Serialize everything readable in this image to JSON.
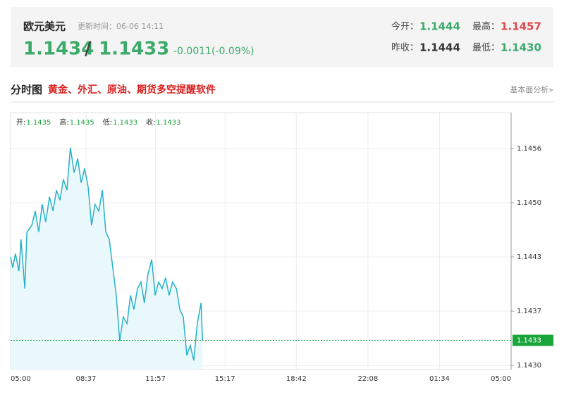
{
  "header": {
    "name": "欧元美元",
    "update_label": "更新时间：06-06 14:11",
    "bid": "1.1434",
    "separator": "/",
    "ask": "1.1433",
    "arrow": "↓",
    "change": "-0.0011(-0.09%)",
    "stats": [
      {
        "label": "今开：",
        "value": "1.1444"
      },
      {
        "label": "最高：",
        "value": "1.1457"
      },
      {
        "label": "昨收：",
        "value": "1.1444"
      },
      {
        "label": "最低：",
        "value": "1.1430"
      }
    ]
  },
  "section": {
    "title": "分时图",
    "promo": "黄金、外汇、原油、期货多空提醒软件",
    "link": "基本面分析»"
  },
  "chart_data": {
    "type": "line",
    "ohlc": [
      {
        "label": "开:",
        "value": "1.1435"
      },
      {
        "label": "高:",
        "value": "1.1435"
      },
      {
        "label": "低:",
        "value": "1.1433"
      },
      {
        "label": "收:",
        "value": "1.1433"
      }
    ],
    "x": [
      0,
      6,
      14,
      24,
      30,
      41,
      47,
      61,
      71,
      81,
      91,
      101,
      112,
      122,
      132,
      142,
      152,
      162,
      172,
      183,
      193,
      203,
      213,
      223,
      233,
      243,
      254,
      264,
      274,
      284,
      294,
      304,
      314,
      324,
      335,
      345,
      355,
      365,
      375,
      385,
      395,
      406,
      416,
      426,
      436,
      446,
      456,
      466,
      477,
      487,
      497,
      507,
      517,
      527,
      537,
      548,
      552
    ],
    "series": [
      {
        "color": "#27b1c9",
        "fill": "#e9f8fb",
        "values": [
          1.14432,
          1.14419,
          1.14436,
          1.14415,
          1.14453,
          1.14394,
          1.14462,
          1.1447,
          1.14487,
          1.14462,
          1.14495,
          1.14474,
          1.14504,
          1.14487,
          1.14512,
          1.145,
          1.14525,
          1.14512,
          1.14563,
          1.14533,
          1.1455,
          1.14521,
          1.14538,
          1.14516,
          1.1447,
          1.14495,
          1.14487,
          1.14512,
          1.14462,
          1.14453,
          1.14419,
          1.14386,
          1.14331,
          1.1436,
          1.14352,
          1.14386,
          1.14369,
          1.14394,
          1.14402,
          1.14377,
          1.14411,
          1.14429,
          1.14386,
          1.14402,
          1.14394,
          1.14407,
          1.14386,
          1.14402,
          1.14394,
          1.14369,
          1.1436,
          1.14314,
          1.14326,
          1.14308,
          1.14352,
          1.14377,
          1.14332
        ]
      }
    ],
    "xlim": [
      0,
      1440
    ],
    "xticks": [
      {
        "value": 0,
        "label": "05:00"
      },
      {
        "value": 217,
        "label": "08:37"
      },
      {
        "value": 417,
        "label": "11:57"
      },
      {
        "value": 617,
        "label": "15:17"
      },
      {
        "value": 822,
        "label": "18:42"
      },
      {
        "value": 1028,
        "label": "22:08"
      },
      {
        "value": 1234,
        "label": "01:34"
      },
      {
        "value": 1440,
        "label": "05:00"
      }
    ],
    "ylim": [
      1.14297,
      1.14605
    ],
    "yticks": [
      {
        "value": 1.14302,
        "label": "1.1430"
      },
      {
        "value": 1.14367,
        "label": "1.1437"
      },
      {
        "value": 1.14432,
        "label": "1.1443"
      },
      {
        "value": 1.14497,
        "label": "1.1450"
      },
      {
        "value": 1.14562,
        "label": "1.1456"
      }
    ],
    "price_line": {
      "value": 1.14332,
      "label": "1.1433",
      "color": "#1aa53a"
    },
    "grid": true
  }
}
